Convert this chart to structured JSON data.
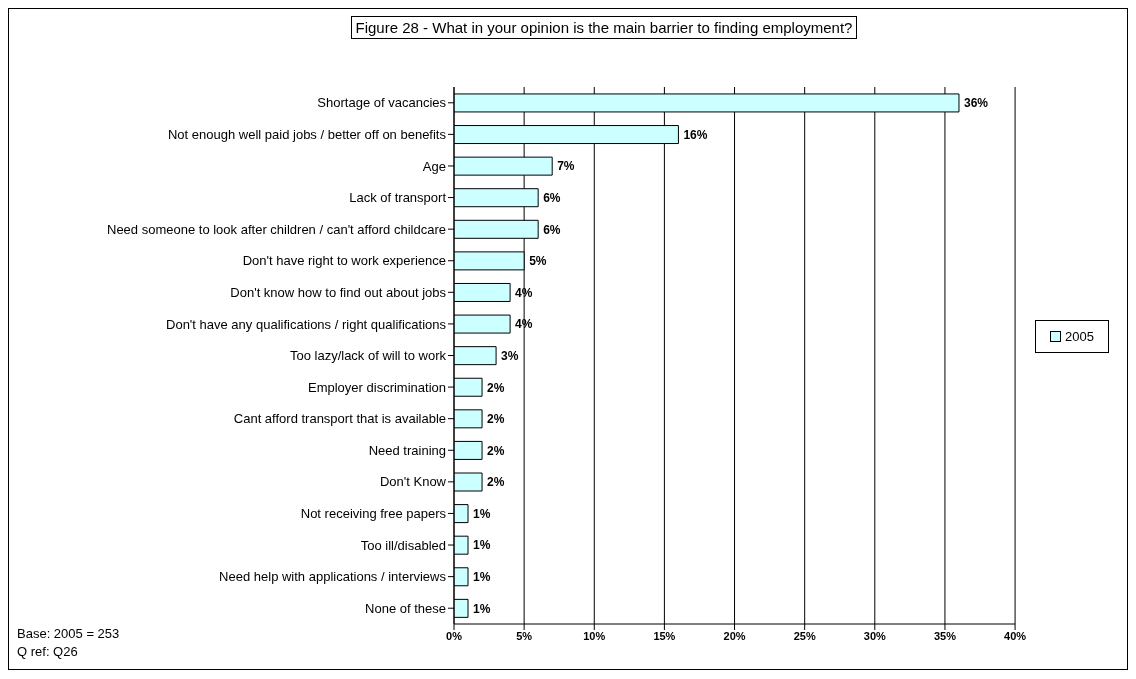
{
  "chart_data": {
    "type": "bar",
    "orientation": "horizontal",
    "title": "Figure 28 - What in your opinion is the main barrier to finding employment?",
    "categories": [
      "Shortage of vacancies",
      "Not enough well paid jobs / better off on benefits",
      "Age",
      "Lack of transport",
      "Need someone to look after children / can't afford childcare",
      "Don't have right to work experience",
      "Don't know how to find out about jobs",
      "Don't have any qualifications / right qualifications",
      "Too lazy/lack of will to work",
      "Employer discrimination",
      "Cant afford transport that is available",
      "Need training",
      "Don't Know",
      "Not receiving free papers",
      "Too ill/disabled",
      "Need help with applications / interviews",
      "None of these"
    ],
    "series": [
      {
        "name": "2005",
        "color": "#ccffff",
        "values": [
          36,
          16,
          7,
          6,
          6,
          5,
          4,
          4,
          3,
          2,
          2,
          2,
          2,
          1,
          1,
          1,
          1
        ],
        "value_labels": [
          "36%",
          "16%",
          "7%",
          "6%",
          "6%",
          "5%",
          "4%",
          "4%",
          "3%",
          "2%",
          "2%",
          "2%",
          "2%",
          "1%",
          "1%",
          "1%",
          "1%"
        ]
      }
    ],
    "xlim": [
      0,
      40
    ],
    "xticks": [
      {
        "value": 0,
        "label": "0%"
      },
      {
        "value": 5,
        "label": "5%"
      },
      {
        "value": 10,
        "label": "10%"
      },
      {
        "value": 15,
        "label": "15%"
      },
      {
        "value": 20,
        "label": "20%"
      },
      {
        "value": 25,
        "label": "25%"
      },
      {
        "value": 30,
        "label": "30%"
      },
      {
        "value": 35,
        "label": "35%"
      },
      {
        "value": 40,
        "label": "40%"
      }
    ],
    "grid": "x",
    "legend": "right",
    "annotations": [
      "Base: 2005 = 253",
      "Q ref: Q26"
    ]
  }
}
